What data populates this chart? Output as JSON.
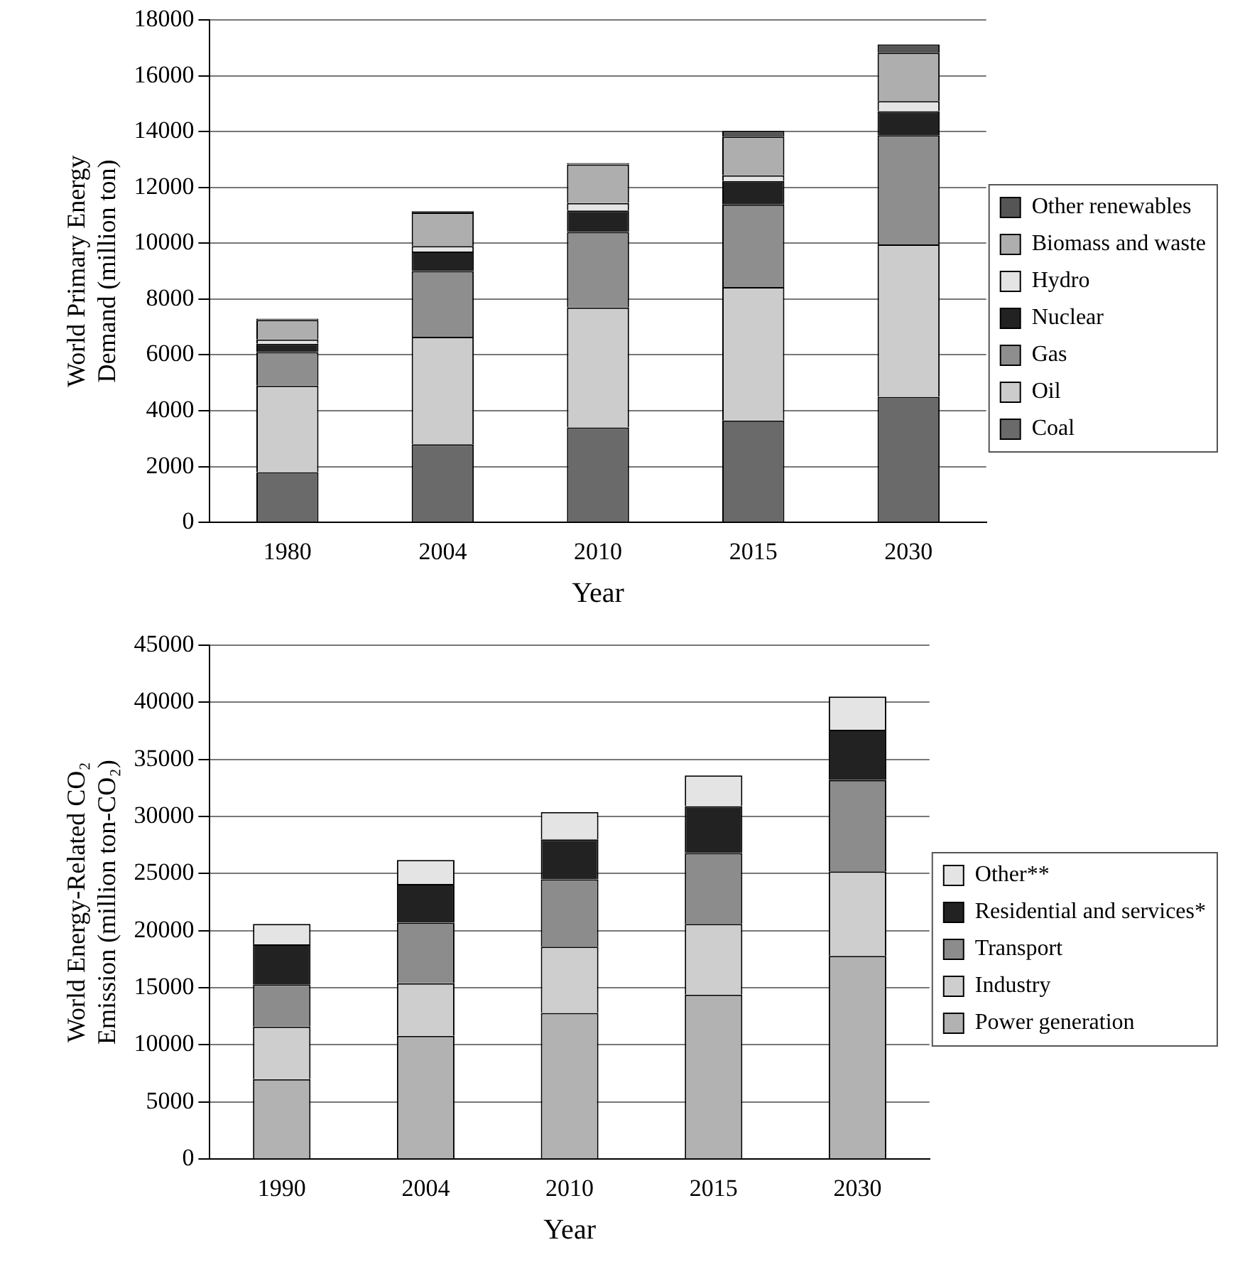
{
  "chart_data": [
    {
      "type": "bar",
      "stacked": true,
      "categories": [
        "1980",
        "2004",
        "2010",
        "2015",
        "2030"
      ],
      "xlabel": "Year",
      "ylabel": "World Primary Energy Demand (million ton)",
      "ylim": [
        0,
        18000
      ],
      "yticks": [
        0,
        2000,
        4000,
        6000,
        8000,
        10000,
        12000,
        14000,
        16000,
        18000
      ],
      "grid": "y",
      "legend": "right",
      "series": [
        {
          "name": "Coal",
          "color": "#6a6a6a",
          "values": [
            1800,
            2800,
            3400,
            3650,
            4500
          ]
        },
        {
          "name": "Oil",
          "color": "#cccccc",
          "values": [
            3100,
            3850,
            4300,
            4780,
            5460
          ]
        },
        {
          "name": "Gas",
          "color": "#8e8e8e",
          "values": [
            1200,
            2350,
            2700,
            2960,
            3910
          ]
        },
        {
          "name": "Nuclear",
          "color": "#222222",
          "values": [
            300,
            700,
            770,
            840,
            860
          ]
        },
        {
          "name": "Hydro",
          "color": "#e4e4e4",
          "values": [
            150,
            200,
            270,
            200,
            360
          ]
        },
        {
          "name": "Biomass and waste",
          "color": "#aeaeae",
          "values": [
            700,
            1200,
            1380,
            1390,
            1730
          ]
        },
        {
          "name": "Other renewables",
          "color": "#555555",
          "values": [
            50,
            50,
            50,
            200,
            300
          ]
        }
      ]
    },
    {
      "type": "bar",
      "stacked": true,
      "categories": [
        "1990",
        "2004",
        "2010",
        "2015",
        "2030"
      ],
      "xlabel": "Year",
      "ylabel": "World Energy-Related CO₂ Emission (million ton-CO₂)",
      "ylim": [
        0,
        45000
      ],
      "yticks": [
        0,
        5000,
        10000,
        15000,
        20000,
        25000,
        30000,
        35000,
        40000,
        45000
      ],
      "grid": "y",
      "legend": "right",
      "series": [
        {
          "name": "Power generation",
          "color": "#b2b2b2",
          "values": [
            7000,
            10800,
            12800,
            14400,
            17800
          ]
        },
        {
          "name": "Industry",
          "color": "#cecece",
          "values": [
            4600,
            4600,
            5800,
            6200,
            7400
          ]
        },
        {
          "name": "Transport",
          "color": "#8c8c8c",
          "values": [
            3700,
            5300,
            5900,
            6200,
            8000
          ]
        },
        {
          "name": "Residential and services*",
          "color": "#222222",
          "values": [
            3500,
            3400,
            3500,
            4100,
            4400
          ]
        },
        {
          "name": "Other**",
          "color": "#e4e4e4",
          "values": [
            1800,
            2100,
            2400,
            2700,
            2900
          ]
        }
      ]
    }
  ]
}
